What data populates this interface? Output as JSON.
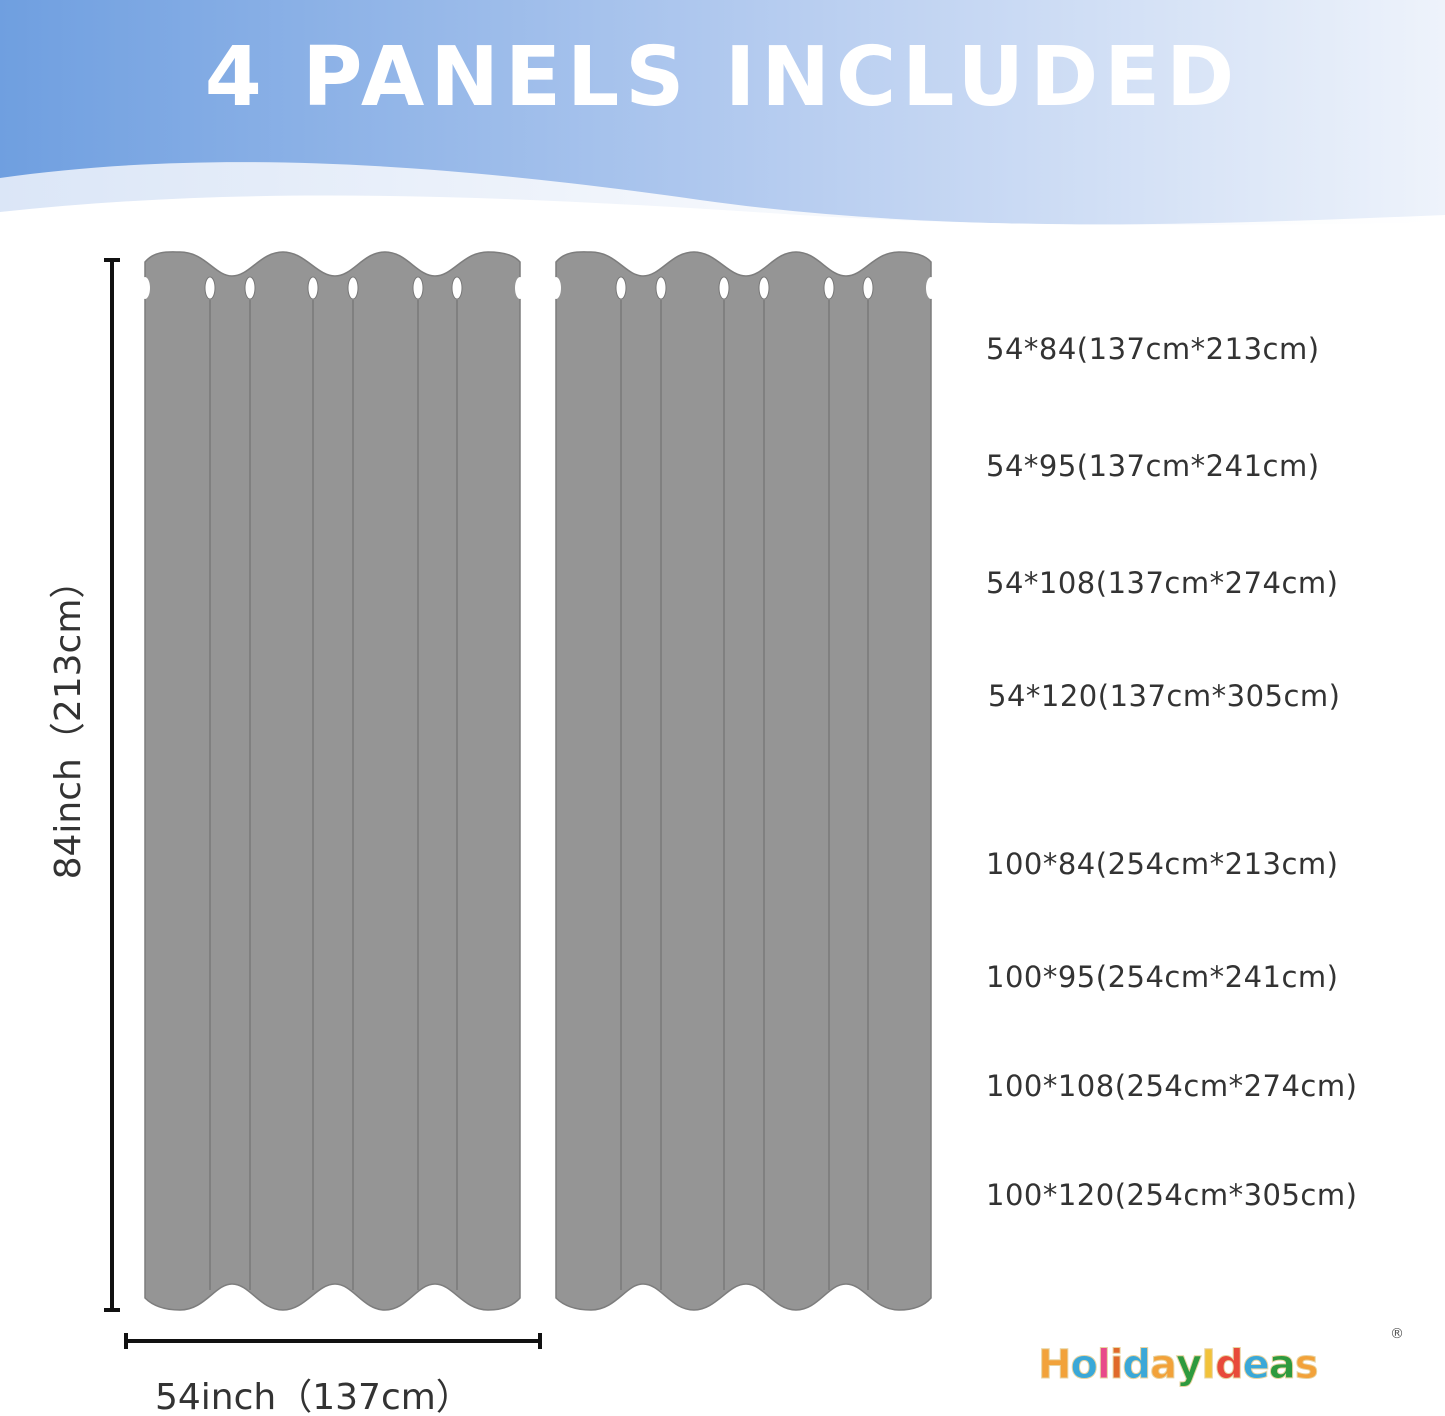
{
  "header": {
    "title": "4 PANELS INCLUDED",
    "gradient_start": "#6f9fe0",
    "gradient_end": "#eef3fb"
  },
  "curtain": {
    "color": "#959595",
    "panels_shown": 2
  },
  "dimensions": {
    "height_label": "84inch（213cm）",
    "width_label": "54inch（137cm）"
  },
  "sizes": [
    "54*84(137cm*213cm)",
    "54*95(137cm*241cm)",
    "54*108(137cm*274cm)",
    "54*120(137cm*305cm)",
    "100*84(254cm*213cm)",
    "100*95(254cm*241cm)",
    "100*108(254cm*274cm)",
    "100*120(254cm*305cm)"
  ],
  "brand": {
    "name": "HolidayIdeas",
    "registered": "®"
  }
}
